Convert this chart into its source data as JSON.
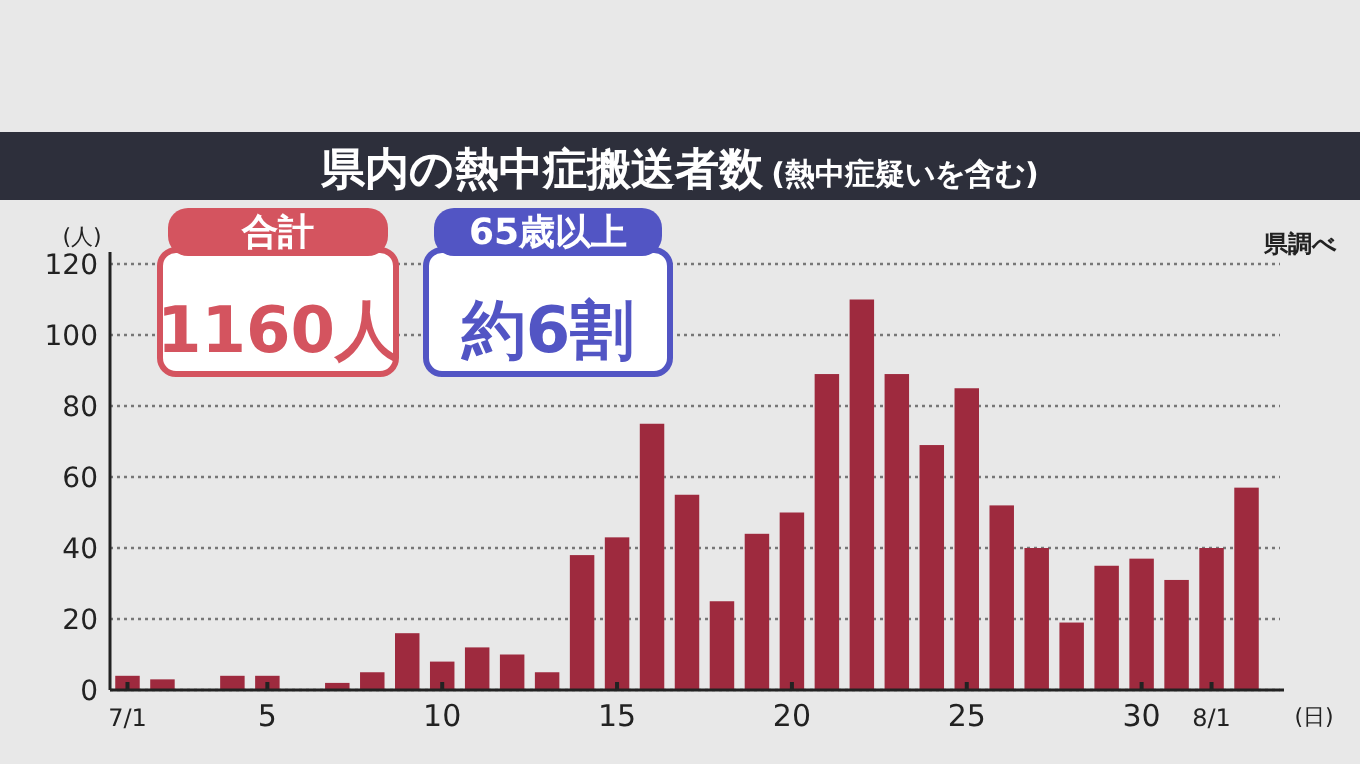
{
  "chart_data": {
    "type": "bar",
    "title": "県内の熱中症搬送者数",
    "subtitle": "(熱中症疑いを含む)",
    "ylabel": "(人)",
    "xlabel": "(日)",
    "categories": [
      "7/1",
      null,
      null,
      null,
      "5",
      null,
      null,
      null,
      null,
      "10",
      null,
      null,
      null,
      null,
      "15",
      null,
      null,
      null,
      null,
      "20",
      null,
      null,
      null,
      null,
      "25",
      null,
      null,
      null,
      null,
      "30",
      null,
      "8/1",
      null
    ],
    "values": [
      4,
      3,
      0,
      4,
      4,
      0,
      2,
      5,
      16,
      8,
      12,
      10,
      5,
      38,
      43,
      75,
      55,
      25,
      44,
      50,
      89,
      110,
      89,
      69,
      85,
      52,
      40,
      19,
      35,
      37,
      31,
      40,
      57
    ],
    "color": "#9e2a3e",
    "ylim": [
      0,
      120
    ],
    "yticks": [
      0,
      20,
      40,
      60,
      80,
      100,
      120
    ],
    "grid": "y",
    "annotations": [
      "合計",
      "1160人",
      "65歳以上",
      "約6割",
      "県調べ"
    ]
  }
}
